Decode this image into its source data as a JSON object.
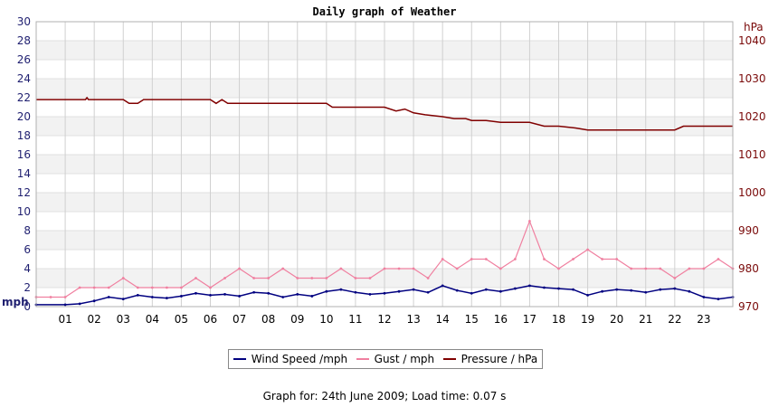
{
  "chart_data": {
    "type": "line",
    "title": "Daily graph of Weather",
    "ylabel": "mph",
    "y2label": "hPa",
    "ylim": [
      0,
      30
    ],
    "y2lim": [
      970,
      1045
    ],
    "yticks": [
      0,
      2,
      4,
      6,
      8,
      10,
      12,
      14,
      16,
      18,
      20,
      22,
      24,
      26,
      28,
      30
    ],
    "y2ticks": [
      970,
      980,
      990,
      1000,
      1010,
      1020,
      1030,
      1040
    ],
    "xlim": [
      0,
      24
    ],
    "xtick_labels": [
      "01",
      "02",
      "03",
      "04",
      "05",
      "06",
      "07",
      "08",
      "09",
      "10",
      "11",
      "12",
      "13",
      "14",
      "15",
      "16",
      "17",
      "18",
      "19",
      "20",
      "21",
      "22",
      "23"
    ],
    "grid": "horizontal bands",
    "legend_position": "bottom",
    "series": [
      {
        "name": "Wind Speed /mph",
        "axis": "left",
        "color": "#000080",
        "x": [
          0,
          1,
          1.5,
          2,
          2.5,
          3,
          3.5,
          4,
          4.5,
          5,
          5.5,
          6,
          6.5,
          7,
          7.5,
          8,
          8.5,
          9,
          9.5,
          10,
          10.5,
          11,
          11.5,
          12,
          12.5,
          13,
          13.5,
          14,
          14.5,
          15,
          15.5,
          16,
          16.5,
          17,
          17.5,
          18,
          18.5,
          19,
          19.5,
          20,
          20.5,
          21,
          21.5,
          22,
          22.5,
          23,
          23.5,
          24
        ],
        "y": [
          0.2,
          0.2,
          0.3,
          0.6,
          1.0,
          0.8,
          1.2,
          1.0,
          0.9,
          1.1,
          1.4,
          1.2,
          1.3,
          1.1,
          1.5,
          1.4,
          1.0,
          1.3,
          1.1,
          1.6,
          1.8,
          1.5,
          1.3,
          1.4,
          1.6,
          1.8,
          1.5,
          2.2,
          1.7,
          1.4,
          1.8,
          1.6,
          1.9,
          2.2,
          2.0,
          1.9,
          1.8,
          1.2,
          1.6,
          1.8,
          1.7,
          1.5,
          1.8,
          1.9,
          1.6,
          1.0,
          0.8,
          1.0
        ]
      },
      {
        "name": "Gust / mph",
        "axis": "left",
        "color": "#f080a0",
        "x": [
          0,
          0.5,
          1,
          1.5,
          2,
          2.5,
          3,
          3.5,
          4,
          4.5,
          5,
          5.5,
          6,
          6.5,
          7,
          7.5,
          8,
          8.5,
          9,
          9.5,
          10,
          10.5,
          11,
          11.5,
          12,
          12.5,
          13,
          13.5,
          14,
          14.5,
          15,
          15.5,
          16,
          16.5,
          17,
          17.5,
          18,
          18.5,
          19,
          19.5,
          20,
          20.5,
          21,
          21.5,
          22,
          22.5,
          23,
          23.5,
          24
        ],
        "y": [
          1,
          1,
          1,
          2,
          2,
          2,
          3,
          2,
          2,
          2,
          2,
          3,
          2,
          3,
          4,
          3,
          3,
          4,
          3,
          3,
          3,
          4,
          3,
          3,
          4,
          4,
          4,
          3,
          5,
          4,
          5,
          5,
          4,
          5,
          9,
          5,
          4,
          5,
          6,
          5,
          5,
          4,
          4,
          4,
          3,
          4,
          4,
          5,
          4
        ]
      },
      {
        "name": "Pressure / hPa",
        "axis": "right",
        "color": "#800000",
        "x": [
          0,
          1.7,
          1.75,
          1.8,
          2.5,
          3.0,
          3.2,
          3.5,
          3.7,
          4,
          5,
          6,
          6.2,
          6.4,
          6.6,
          7,
          8,
          9,
          10,
          10.2,
          11,
          12,
          12.4,
          12.7,
          13,
          13.4,
          14,
          14.4,
          14.8,
          15,
          15.5,
          16,
          16.5,
          17,
          17.5,
          18,
          18.6,
          19,
          20,
          21,
          22,
          22.3,
          23,
          24
        ],
        "y": [
          1024.5,
          1024.5,
          1025,
          1024.5,
          1024.5,
          1024.5,
          1023.5,
          1023.5,
          1024.5,
          1024.5,
          1024.5,
          1024.5,
          1023.5,
          1024.5,
          1023.5,
          1023.5,
          1023.5,
          1023.5,
          1023.5,
          1022.5,
          1022.5,
          1022.5,
          1021.5,
          1022,
          1021,
          1020.5,
          1020,
          1019.5,
          1019.5,
          1019,
          1019,
          1018.5,
          1018.5,
          1018.5,
          1017.5,
          1017.5,
          1017,
          1016.5,
          1016.5,
          1016.5,
          1016.5,
          1017.5,
          1017.5,
          1017.5
        ]
      }
    ]
  },
  "legend": {
    "wind": "Wind Speed /mph",
    "gust": "Gust / mph",
    "pressure": "Pressure / hPa"
  },
  "footer": "Graph for: 24th June 2009; Load time: 0.07 s"
}
